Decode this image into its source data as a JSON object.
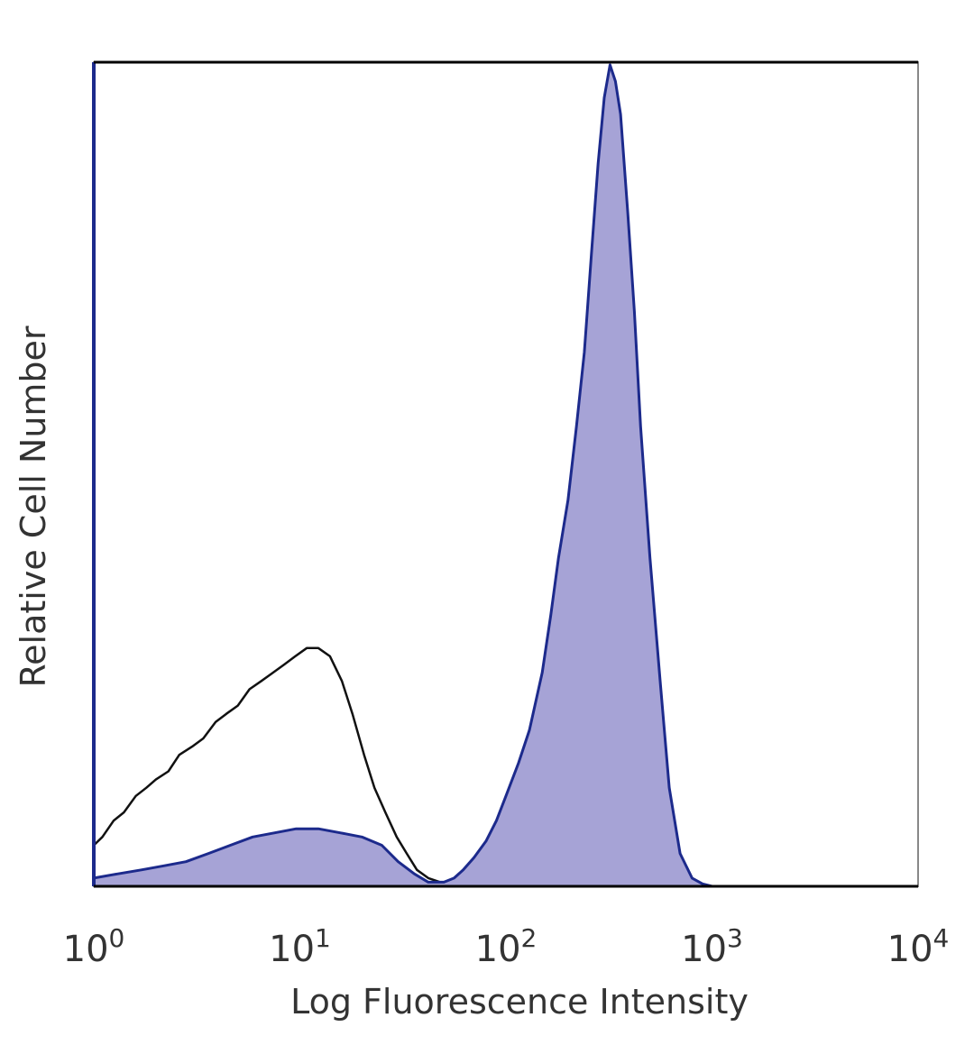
{
  "chart_data": {
    "type": "area",
    "title": "",
    "xlabel": "Log Fluorescence Intensity",
    "ylabel": "Relative Cell Number",
    "x_scale": "log",
    "xlim": [
      1,
      10000
    ],
    "ylim": [
      0,
      100
    ],
    "grid": false,
    "legend": "none",
    "x_ticks": [
      {
        "base": "10",
        "exp": "0",
        "value": 1
      },
      {
        "base": "10",
        "exp": "1",
        "value": 10
      },
      {
        "base": "10",
        "exp": "2",
        "value": 100
      },
      {
        "base": "10",
        "exp": "3",
        "value": 1000
      },
      {
        "base": "10",
        "exp": "4",
        "value": 10000
      }
    ],
    "series": [
      {
        "kind": "outline",
        "color": "#111111",
        "x": [
          1.0,
          1.1,
          1.25,
          1.4,
          1.6,
          1.8,
          2.0,
          2.3,
          2.6,
          3.0,
          3.4,
          3.9,
          4.4,
          5.0,
          5.7,
          6.5,
          7.4,
          8.4,
          9.5,
          10.8,
          12.3,
          14.0,
          16.0,
          18.0,
          20.5,
          23.0,
          26.0,
          29.5,
          33.0,
          37.0,
          42.0,
          48.0,
          55.0
        ],
        "values": [
          5,
          6,
          8,
          9,
          11,
          12,
          13,
          14,
          16,
          17,
          18,
          20,
          21,
          22,
          24,
          25,
          26,
          27,
          28,
          29,
          29,
          28,
          25,
          21,
          16,
          12,
          9,
          6,
          4,
          2,
          1,
          0.5,
          0
        ]
      },
      {
        "kind": "filled",
        "color": "#1c2a8c",
        "fill": "#a6a3d6",
        "x": [
          1.0,
          1.3,
          1.7,
          2.2,
          2.8,
          3.6,
          4.6,
          5.9,
          7.5,
          9.6,
          12.3,
          15.8,
          20.0,
          25.0,
          30.0,
          36.0,
          42.0,
          50.0,
          56.0,
          62.0,
          70.0,
          80.0,
          90.0,
          100.0,
          115.0,
          130.0,
          150.0,
          165.0,
          180.0,
          200.0,
          220.0,
          240.0,
          260.0,
          280.0,
          300.0,
          320.0,
          340.0,
          360.0,
          390.0,
          420.0,
          450.0,
          500.0,
          560.0,
          620.0,
          700.0,
          800.0,
          900.0,
          1000.0,
          10000.0
        ],
        "values": [
          1,
          1.5,
          2,
          2.5,
          3,
          4,
          5,
          6,
          6.5,
          7,
          7,
          6.5,
          6,
          5,
          3,
          1.5,
          0.5,
          0.5,
          1,
          2,
          3.5,
          5.5,
          8,
          11,
          15,
          19,
          26,
          33,
          40,
          47,
          56,
          65,
          77,
          88,
          96,
          100,
          98,
          94,
          82,
          70,
          56,
          40,
          25,
          12,
          4,
          1,
          0.3,
          0,
          0
        ]
      }
    ]
  }
}
